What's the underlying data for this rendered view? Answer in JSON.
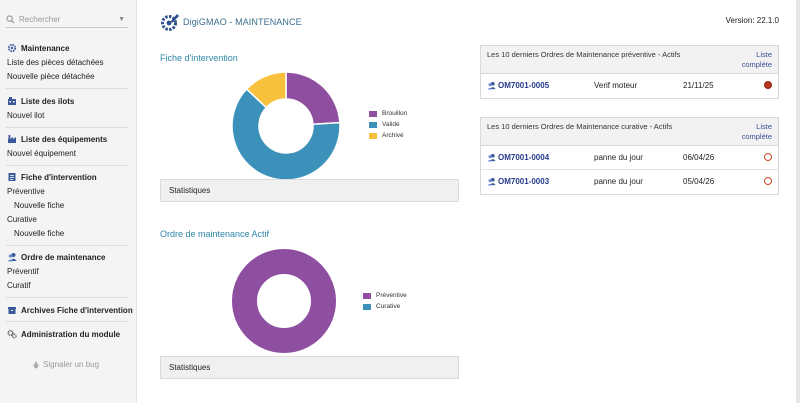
{
  "sidebar": {
    "search_placeholder": "Rechercher",
    "sections": {
      "maintenance": {
        "title": "Maintenance",
        "items": [
          "Liste des pièces détachées",
          "Nouvelle pièce détachée"
        ]
      },
      "ilots": {
        "title": "Liste des ilots",
        "items": [
          "Nouvel ilot"
        ]
      },
      "equipements": {
        "title": "Liste des équipements",
        "items": [
          "Nouvel équipement"
        ]
      },
      "fiche": {
        "title": "Fiche d'intervention",
        "items": [
          "Préventive",
          "Nouvelle fiche",
          "Curative",
          "Nouvelle fiche"
        ]
      },
      "ordre": {
        "title": "Ordre de maintenance",
        "items": [
          "Préventif",
          "Curatif"
        ]
      },
      "archives": {
        "title": "Archives Fiche d'intervention"
      },
      "admin": {
        "title": "Administration du module"
      }
    },
    "bug_label": "Signaler un bug"
  },
  "header": {
    "title": "DigiGMAO - MAINTENANCE",
    "version": "Version: 22.1.0"
  },
  "chart_data": [
    {
      "type": "pie",
      "title": "Fiche d'intervention",
      "categories": [
        "Brouillon",
        "Validé",
        "Archivé"
      ],
      "values": [
        24,
        63,
        13
      ],
      "colors": [
        "#8e4fa1",
        "#3c91bb",
        "#f8c13d"
      ]
    },
    {
      "type": "pie",
      "title": "Ordre de maintenance Actif",
      "categories": [
        "Préventive",
        "Curative"
      ],
      "values": [
        100,
        0
      ],
      "colors": [
        "#8e4fa1",
        "#3c91bb"
      ]
    }
  ],
  "stats_label": "Statistiques",
  "panels": {
    "preventive": {
      "title": "Les 10 derniers Ordres de Maintenance préventive - Actifs",
      "link": "Liste complète",
      "rows": [
        {
          "ref": "OM7001-0005",
          "label": "Verif moteur",
          "date": "21/11/25",
          "status": "filled"
        }
      ]
    },
    "curative": {
      "title": "Les 10 derniers Ordres de Maintenance curative - Actifs",
      "link": "Liste complète",
      "rows": [
        {
          "ref": "OM7001-0004",
          "label": "panne du jour",
          "date": "06/04/26",
          "status": "empty"
        },
        {
          "ref": "OM7001-0003",
          "label": "panne du jour",
          "date": "05/04/26",
          "status": "empty"
        }
      ]
    }
  },
  "colors": {
    "accent": "#2e86a8",
    "link": "#233a8a",
    "status_red": "#b8361d"
  }
}
